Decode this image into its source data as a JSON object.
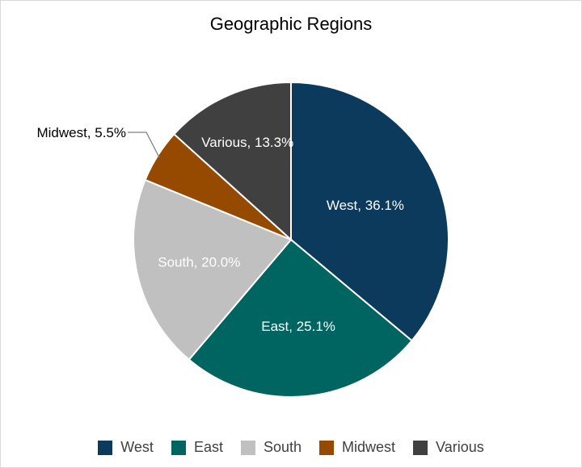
{
  "chart_data": {
    "type": "pie",
    "title": "Geographic Regions",
    "categories": [
      "West",
      "East",
      "South",
      "Midwest",
      "Various"
    ],
    "values": [
      36.1,
      25.1,
      20.0,
      5.5,
      13.3
    ],
    "data_labels": [
      "West, 36.1%",
      "East, 25.1%",
      "South, 20.0%",
      "Midwest, 5.5%",
      "Various, 13.3%"
    ],
    "colors": [
      "#0b3a5c",
      "#006461",
      "#c0c0c0",
      "#954a00",
      "#404040"
    ],
    "legend_position": "bottom"
  }
}
